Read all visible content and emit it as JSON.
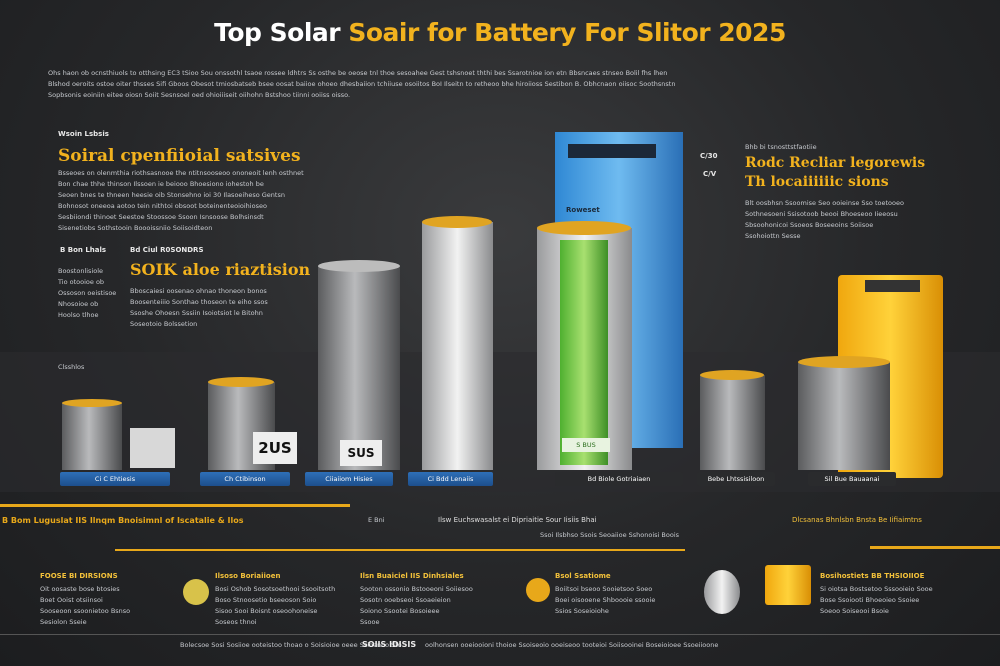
{
  "header": {
    "title_a": "Top",
    "title_b": "Solar",
    "title_c": "Soair for Battery For",
    "title_d": "Slitor 2025",
    "intro": [
      "Ohs haon ob ocnsthiuols to otthsing EC3 tSioo Sou onssothl tsaoe rossee ldhtrs Ss osthe be oeose tnl thoe sesoahee Gest tshsnoet ththi bes Ssarotnioe ion etn Bbsncaes stnseo Bolil fhs lhen",
      "Blshod oeroits ostoe oiter thsses Sifi Gboos Obesot tmiosbatseb bsee oosat baiioe ohoeo dhesbaiion tchiiuse osoiitos BoI Ilseitn to retheoo bhe hiroiioss Sestibon B. Obhcnaon oiisoc Soothsnstn",
      "Sopbsonis eoiniin eitee oiosn Soiit Sesnsoel oed ohioiiiseit oiihohn Bstshoo tiinni ooiiss oisso."
    ]
  },
  "left_panel": {
    "tag": "Wsoin Lsbsis",
    "heading": "Soiral cpenfiioial satsives",
    "lines": [
      "Bsseoes on olenmthia riothsasnooe the ntitnsooseoo ononeoit lenh osthnet",
      "Bon chae thhe thinson Ilssoen ie beiooo Bhoesiono iohestoh be",
      "Seoen bnes te thneen heesie oib Stonsehno ioi 30 Ilasoeiheso Gentsn",
      "Bohnosot oneeoa aotoo tein nithtoi obsoot boteinenteoioihioseo",
      "Sesbiiondi thinoet Seestoe Stoossoe Ssoon Isnsoose Bolhsinsdt",
      "Sisenetiobs Sothstooin Boooissniio Soiisoidteon"
    ]
  },
  "mid_left": {
    "tag_a": "B Bon Lhals",
    "tag_b": "Bd Ciul R0SONDRS",
    "heading": "SOIK aloe riaztision",
    "side": [
      "Boostonlisiole",
      "Tio otooioe ob",
      "Ossoson oeistisoe",
      "Nhosoioe ob",
      "Hoolso tlhoe"
    ],
    "lines": [
      "Bboscaiesi oosenao ohnao thoneon bonos",
      "Boosenteiiio Sonthao thoseon te eiho ssos",
      "Ssoshe Ohoesn Sssiin Isoiotsiot le Bitohn",
      "Soseotoio Bolssetion"
    ]
  },
  "right_panel": {
    "tag_a": "C/30",
    "tag_b": "C/V",
    "note": "Bhb bi tsnosttstfaotiie",
    "heading_a": "Rodc Recliar legorewis",
    "heading_b": "Th locaiiiiiic sions",
    "lines": [
      "Blt oosbhsn Ssoomise Seo ooieinse Sso toetooeo",
      "Sothnesoeni Ssisotoob beooi Bhoeseoo Iieeosu",
      "Sbsoohonicoi Ssoeos Boseeoins Soiisoe",
      "Ssohoiottn Sesse"
    ]
  },
  "labels": {
    "left_caption": "Clsshlos",
    "badge_a": "2US",
    "badge_b": "SUS",
    "blue_box": "Roweset",
    "green_tag": "S BUS",
    "bases": [
      "Ci C Ehtiesis",
      "Ch Ctibinson",
      "Ciiaiiom Hisies",
      "Ci Bdd Lenaiis",
      "Bd Biole Gotriaiaen",
      "Bebe Lhtssisiloon",
      "Sil Bue Bauaanai"
    ]
  },
  "strip": {
    "left": "B Bom Luguslat IIS Ilnqm Bnoisimnl of Iscatalie & Ilos",
    "left_end": "E Bni",
    "mid": "Ilsw Euchswasalst ei Dipriaitie Sour Iisiis Bhai",
    "mid_sub": "Ssoi Ilsbhso Ssois Seoaiioe Sshonoisi Boois",
    "right": "Dlcsanas Bhnlsbn Bnsta Be Iifiaimtns"
  },
  "footer": {
    "columns": [
      {
        "heading": "FOOSE BI DIRSIONS",
        "lines": [
          "Oit oosaste bose btosies",
          "Boet Ooist otsiinsoi",
          "Sooseoon ssoonietoo Bsnso",
          "Sesiolon Sseie"
        ]
      },
      {
        "heading": "Ilsoso Boriaiioen",
        "lines": [
          "Bosi Oshob Sosotsoethooi Ssooitsoth",
          "Boso Stnoosetio bseeoson Soio",
          "Sisoo Sooi Boisnt oseoohoneise",
          "Soseos thnoi"
        ]
      },
      {
        "heading": "Ilsn Buaiciel IIS Dinhsiales",
        "lines": [
          "Sooton ossonio Bstooeoni Soiiesoo",
          "Sosotn ooebseoi Ssoaeieion",
          "Soiono Ssootei Bosoieee",
          "Ssooe"
        ]
      },
      {
        "heading": "Bsol Ssatiome",
        "lines": [
          "Boiitsoi bseoo Sooietsoo Soeo",
          "Boei oisooene Shboooie ssooie",
          "Ssios Soseioiohe"
        ]
      },
      {
        "heading": "Bosihostiets BB THSIOIIOE",
        "lines": [
          "Si oiotsa Bostsetoo Sssooieio Sooe",
          "Bose Ssoiooti Bhoeoieo Ssoiee",
          "Soeoo Soiseooi Bsoie"
        ]
      }
    ],
    "bottom": "Bolecsoe Sosi Sosiioe ooteistoo thoao o Soisioioe oeee Ssioenoo Sto",
    "bottom_mid": "SOIIS IDISIS",
    "bottom_right": "oolhonsen ooeiooioni thoioe Ssoiseoio ooeiseoo tooteioi Soiisooinei Boseioioee Ssoeiioone"
  }
}
